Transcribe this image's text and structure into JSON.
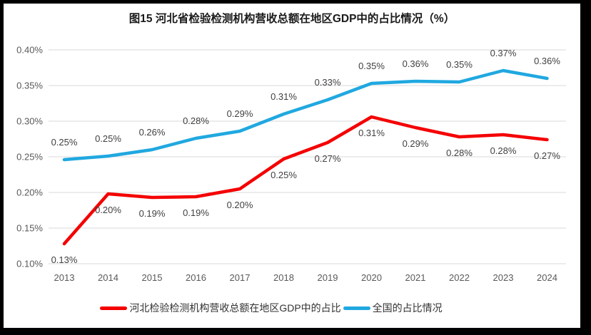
{
  "title": "图15 河北省检验检测机构营收总额在地区GDP中的占比情况（%）",
  "chart_data": {
    "type": "line",
    "title": "图15 河北省检验检测机构营收总额在地区GDP中的占比情况（%）",
    "categories": [
      "2013",
      "2014",
      "2015",
      "2016",
      "2017",
      "2018",
      "2019",
      "2020",
      "2021",
      "2022",
      "2023",
      "2024"
    ],
    "series": [
      {
        "name": "河北检验检测机构营收总额在地区GDP中的占比",
        "color": "#f40000",
        "label_position": "below",
        "labels": [
          "0.13%",
          "0.20%",
          "0.19%",
          "0.19%",
          "0.20%",
          "0.25%",
          "0.27%",
          "0.31%",
          "0.29%",
          "0.28%",
          "0.28%",
          "0.27%"
        ],
        "values": [
          0.128,
          0.198,
          0.193,
          0.194,
          0.205,
          0.247,
          0.27,
          0.306,
          0.291,
          0.278,
          0.281,
          0.274
        ]
      },
      {
        "name": "全国的占比情况",
        "color": "#20a8e0",
        "label_position": "above",
        "labels": [
          "0.25%",
          "0.25%",
          "0.26%",
          "0.28%",
          "0.29%",
          "0.31%",
          "0.33%",
          "0.35%",
          "0.36%",
          "0.35%",
          "0.37%",
          "0.36%"
        ],
        "values": [
          0.246,
          0.251,
          0.26,
          0.276,
          0.286,
          0.31,
          0.33,
          0.353,
          0.356,
          0.355,
          0.371,
          0.36
        ]
      }
    ],
    "xlabel": "",
    "ylabel": "",
    "ylim": [
      0.1,
      0.4
    ],
    "yticks": [
      {
        "label": "0.10%",
        "value": 0.1
      },
      {
        "label": "0.15%",
        "value": 0.15
      },
      {
        "label": "0.20%",
        "value": 0.2
      },
      {
        "label": "0.25%",
        "value": 0.25
      },
      {
        "label": "0.30%",
        "value": 0.3
      },
      {
        "label": "0.35%",
        "value": 0.35
      },
      {
        "label": "0.40%",
        "value": 0.4
      }
    ],
    "grid": "horizontal",
    "legend_position": "bottom",
    "gridline_color": "#d9d9d9",
    "axis_label_color": "#595959",
    "data_label_color": "#404040"
  }
}
